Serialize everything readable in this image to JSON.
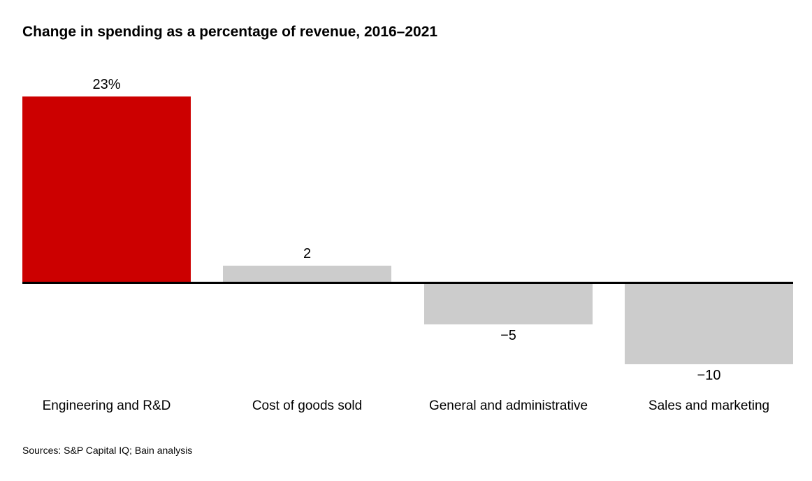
{
  "title": "Change in spending as a percentage of revenue, 2016–2021",
  "source_note": "Sources: S&P Capital IQ; Bain analysis",
  "colors": {
    "accent_red": "#CC0000",
    "bar_gray": "#CCCCCC",
    "axis_black": "#000000",
    "background": "#FFFFFF",
    "text": "#000000"
  },
  "chart_data": {
    "type": "bar",
    "title": "Change in spending as a percentage of revenue, 2016–2021",
    "categories": [
      "Engineering and R&D",
      "Cost of goods sold",
      "General and administrative",
      "Sales and marketing"
    ],
    "values": [
      23,
      2,
      -5,
      -10
    ],
    "value_labels": [
      "23%",
      "2",
      "−5",
      "−10"
    ],
    "bar_colors": [
      "#CC0000",
      "#CCCCCC",
      "#CCCCCC",
      "#CCCCCC"
    ],
    "xlabel": "",
    "ylabel": "",
    "ylim": [
      -10,
      23
    ],
    "baseline": 0,
    "grid": false,
    "legend": false,
    "value_label_position": "outside-end",
    "unit": "percent"
  }
}
